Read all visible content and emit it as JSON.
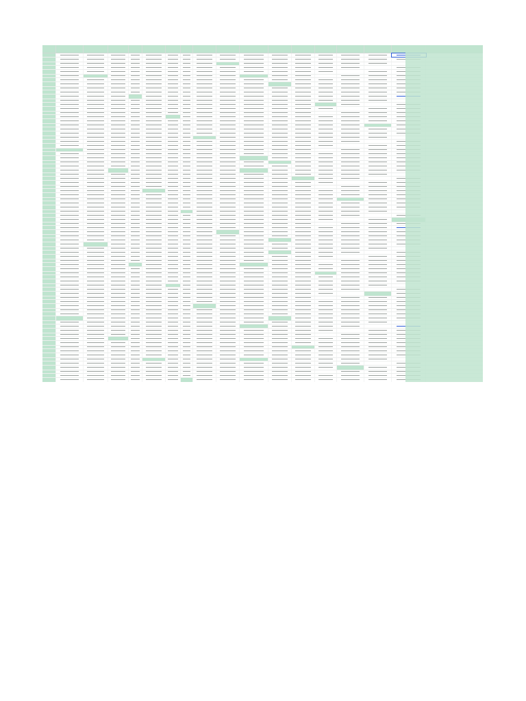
{
  "spreadsheet": {
    "accent_color": "#bfe4cf",
    "link_color": "#2a5bd7",
    "columns": [
      {
        "key": "c0",
        "label": ""
      },
      {
        "key": "c1",
        "label": ""
      },
      {
        "key": "c2",
        "label": ""
      },
      {
        "key": "c3",
        "label": ""
      },
      {
        "key": "c4",
        "label": ""
      },
      {
        "key": "c5",
        "label": ""
      },
      {
        "key": "c6",
        "label": ""
      },
      {
        "key": "c7",
        "label": ""
      },
      {
        "key": "c8",
        "label": ""
      },
      {
        "key": "c9",
        "label": ""
      },
      {
        "key": "c10",
        "label": ""
      },
      {
        "key": "c11",
        "label": ""
      },
      {
        "key": "c12",
        "label": ""
      },
      {
        "key": "c13",
        "label": ""
      },
      {
        "key": "c14",
        "label": ""
      },
      {
        "key": "c15",
        "label": ""
      },
      {
        "key": "c16",
        "label": ""
      }
    ],
    "row_count": 87
  }
}
